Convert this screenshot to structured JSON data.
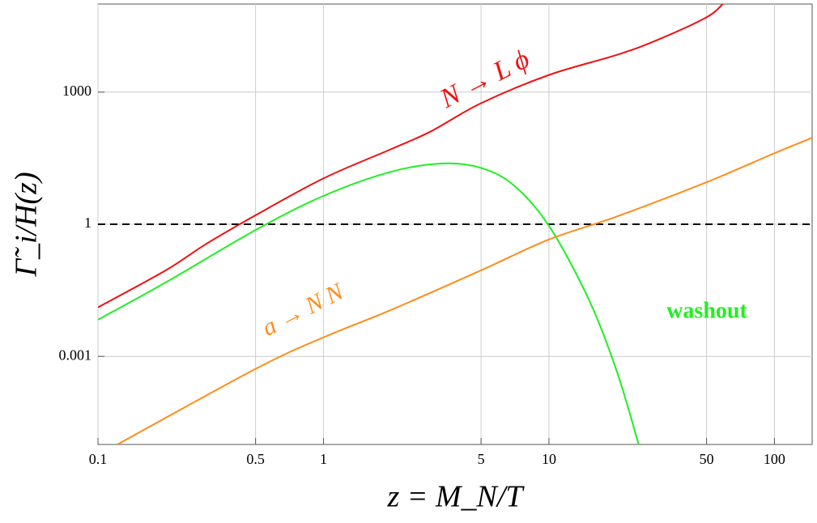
{
  "chart_data": {
    "type": "line",
    "xlabel": "z = M_N/T",
    "ylabel": "Γ̃_i/H(z)",
    "xscale": "log",
    "yscale": "log",
    "xlim": [
      0.1,
      147
    ],
    "ylim": [
      1e-05,
      100000
    ],
    "xticks": [
      0.1,
      0.5,
      1,
      5,
      10,
      50,
      100
    ],
    "yticks": [
      0.001,
      1,
      1000
    ],
    "grid": true,
    "hline": {
      "value": 1,
      "color": "#000000",
      "style": "dashed"
    },
    "series": [
      {
        "name": "N → L ϕ",
        "color": "#ee1111",
        "x": [
          0.1,
          0.2,
          0.3,
          0.5,
          1,
          2,
          3,
          5,
          10,
          20,
          30,
          50,
          59
        ],
        "values": [
          0.013,
          0.09,
          0.35,
          1.6,
          11,
          51,
          129,
          560,
          2450,
          7000,
          15000,
          50000,
          100000
        ]
      },
      {
        "name": "washout",
        "color": "#22ee22",
        "x": [
          0.1,
          0.2,
          0.5,
          1,
          2,
          3.4,
          5,
          7,
          10,
          15,
          20,
          25
        ],
        "values": [
          0.0068,
          0.048,
          0.74,
          4.4,
          15.6,
          24,
          19,
          7.6,
          0.92,
          0.02,
          0.00046,
          1e-05
        ]
      },
      {
        "name": "a → N N",
        "color": "#ff8c1a",
        "x": [
          0.122,
          0.5,
          1,
          2,
          5,
          10,
          20,
          50,
          100,
          147
        ],
        "values": [
          1e-05,
          0.00052,
          0.0027,
          0.0114,
          0.09,
          0.45,
          1.5,
          9,
          41,
          92
        ]
      }
    ]
  }
}
